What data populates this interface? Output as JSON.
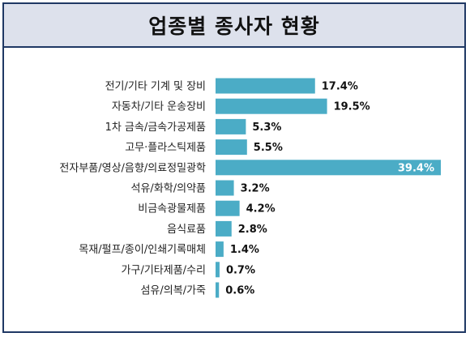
{
  "title": "업종별 종사자 현황",
  "colors": {
    "bar": "#4bacc6",
    "frame": "#1f3864",
    "title_bg": "#dde1ec"
  },
  "chart_data": {
    "type": "bar",
    "orientation": "horizontal",
    "title": "업종별 종사자 현황",
    "unit": "%",
    "categories": [
      "전기/기타 기계 및 장비",
      "자동차/기타 운송장비",
      "1차 금속/금속가공제품",
      "고무·플라스틱제품",
      "전자부품/영상/음향/의료정밀광학",
      "석유/화학/의약품",
      "비금속광물제품",
      "음식료품",
      "목재/펄프/종이/인쇄기록매체",
      "가구/기타제품/수리",
      "섬유/의복/가죽"
    ],
    "values": [
      17.4,
      19.5,
      5.3,
      5.5,
      39.4,
      3.2,
      4.2,
      2.8,
      1.4,
      0.7,
      0.6
    ],
    "value_labels": [
      "17.4%",
      "19.5%",
      "5.3%",
      "5.5%",
      "39.4%",
      "3.2%",
      "4.2%",
      "2.8%",
      "1.4%",
      "0.7%",
      "0.6%"
    ],
    "xlim": [
      0,
      39.4
    ],
    "grid": false,
    "legend": "none"
  }
}
